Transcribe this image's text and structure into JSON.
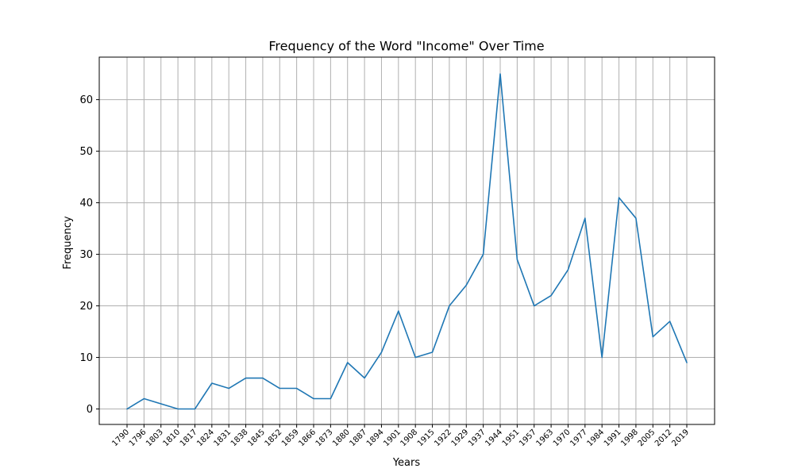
{
  "chart_data": {
    "type": "line",
    "title": "Frequency of the Word \"Income\" Over Time",
    "xlabel": "Years",
    "ylabel": "Frequency",
    "ylim": [
      -3,
      68.25
    ],
    "yticks": [
      0,
      10,
      20,
      30,
      40,
      50,
      60
    ],
    "grid": true,
    "x": [
      "1790",
      "1796",
      "1803",
      "1810",
      "1817",
      "1824",
      "1831",
      "1838",
      "1845",
      "1852",
      "1859",
      "1866",
      "1873",
      "1880",
      "1887",
      "1894",
      "1901",
      "1908",
      "1915",
      "1922",
      "1929",
      "1937",
      "1944",
      "1951",
      "1957",
      "1963",
      "1970",
      "1977",
      "1984",
      "1991",
      "1998",
      "2005",
      "2012",
      "2019"
    ],
    "series": [
      {
        "color": "#1f77b4",
        "values": [
          0,
          2,
          1,
          0,
          0,
          5,
          4,
          6,
          6,
          4,
          4,
          2,
          2,
          9,
          6,
          11,
          19,
          10,
          11,
          20,
          24,
          30,
          65,
          29,
          20,
          22,
          27,
          37,
          10,
          41,
          37,
          14,
          17,
          9
        ]
      }
    ]
  }
}
